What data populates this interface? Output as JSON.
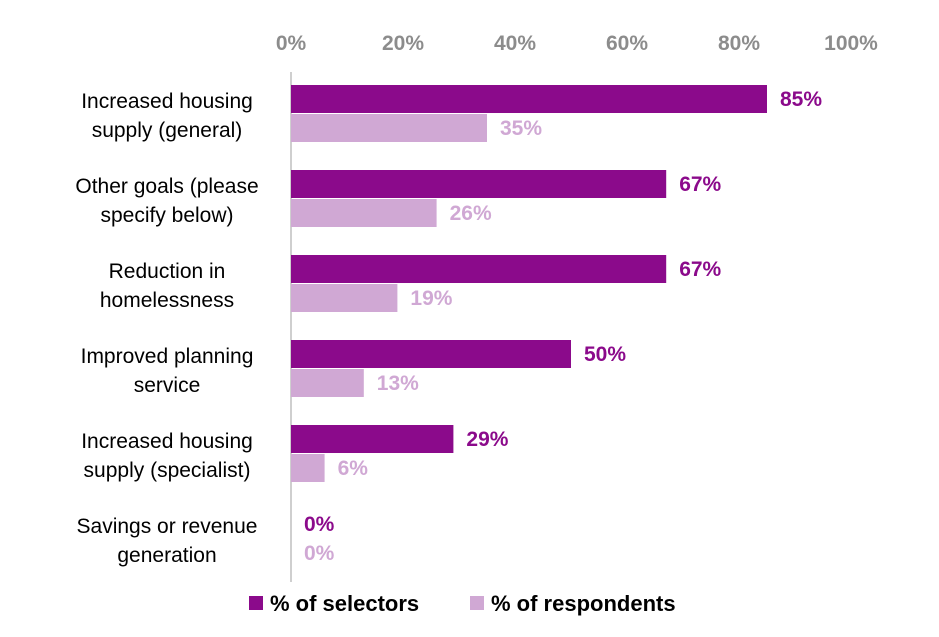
{
  "chart_data": {
    "type": "bar",
    "orientation": "horizontal",
    "categories": [
      [
        "Increased housing",
        "supply (general)"
      ],
      [
        "Other goals (please",
        "specify below)"
      ],
      [
        "Reduction in",
        "homelessness"
      ],
      [
        "Improved planning",
        "service"
      ],
      [
        "Increased housing",
        "supply (specialist)"
      ],
      [
        "Savings or revenue",
        "generation"
      ]
    ],
    "series": [
      {
        "name": "% of selectors",
        "color": "#8b0a8b",
        "values": [
          85,
          67,
          67,
          50,
          29,
          0
        ]
      },
      {
        "name": "% of respondents",
        "color": "#d0a8d4",
        "values": [
          35,
          26,
          19,
          13,
          6,
          0
        ]
      }
    ],
    "data_labels": [
      [
        "85%",
        "67%",
        "67%",
        "50%",
        "29%",
        "0%"
      ],
      [
        "35%",
        "26%",
        "19%",
        "13%",
        "6%",
        "0%"
      ]
    ],
    "x_ticks": [
      "0%",
      "20%",
      "40%",
      "60%",
      "80%",
      "100%"
    ],
    "xlim": [
      0,
      100
    ],
    "x_axis_position": "top",
    "grid": false,
    "legend_position": "bottom"
  }
}
